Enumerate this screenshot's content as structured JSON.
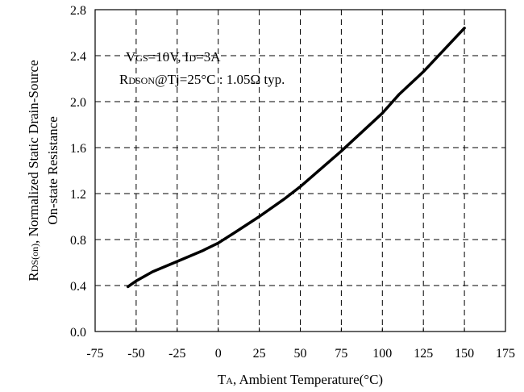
{
  "chart_data": {
    "type": "line",
    "xlabel": {
      "main": "T",
      "sub": "A",
      "rest": ", Ambient Temperature(°C)"
    },
    "ylabel": {
      "line1_main": "R",
      "line1_sub": "DS(on)",
      "line1_rest": ", Normalized Static Drain-Source",
      "line2": "On-state Resistance"
    },
    "xlim": [
      -75,
      175
    ],
    "ylim": [
      0.0,
      2.8
    ],
    "x_ticks": [
      -75,
      -50,
      -25,
      0,
      25,
      50,
      75,
      100,
      125,
      150,
      175
    ],
    "x_tick_labels": [
      "-75",
      "-50",
      "-25",
      "0",
      "25",
      "50",
      "75",
      "100",
      "125",
      "150",
      "175"
    ],
    "y_ticks": [
      0.0,
      0.4,
      0.8,
      1.2,
      1.6,
      2.0,
      2.4,
      2.8
    ],
    "y_tick_labels": [
      "0.0",
      "0.4",
      "0.8",
      "1.2",
      "1.6",
      "2.0",
      "2.4",
      "2.8"
    ],
    "grid": true,
    "annotations": {
      "line1": [
        {
          "t": "V",
          "sub": false
        },
        {
          "t": "GS",
          "sub": true
        },
        {
          "t": "=10V, I",
          "sub": false
        },
        {
          "t": "D",
          "sub": true
        },
        {
          "t": "=3A",
          "sub": false
        }
      ],
      "line2": [
        {
          "t": "R",
          "sub": false
        },
        {
          "t": "DSON",
          "sub": true
        },
        {
          "t": "@Tj=25°C : 1.05Ω  typ.",
          "sub": false
        }
      ]
    },
    "series": [
      {
        "x": [
          -55,
          -50,
          -40,
          -25,
          -10,
          0,
          10,
          25,
          40,
          50,
          75,
          100,
          110,
          125,
          150
        ],
        "y": [
          0.39,
          0.44,
          0.52,
          0.61,
          0.7,
          0.77,
          0.86,
          1.0,
          1.15,
          1.26,
          1.57,
          1.9,
          2.06,
          2.26,
          2.64
        ]
      }
    ]
  }
}
